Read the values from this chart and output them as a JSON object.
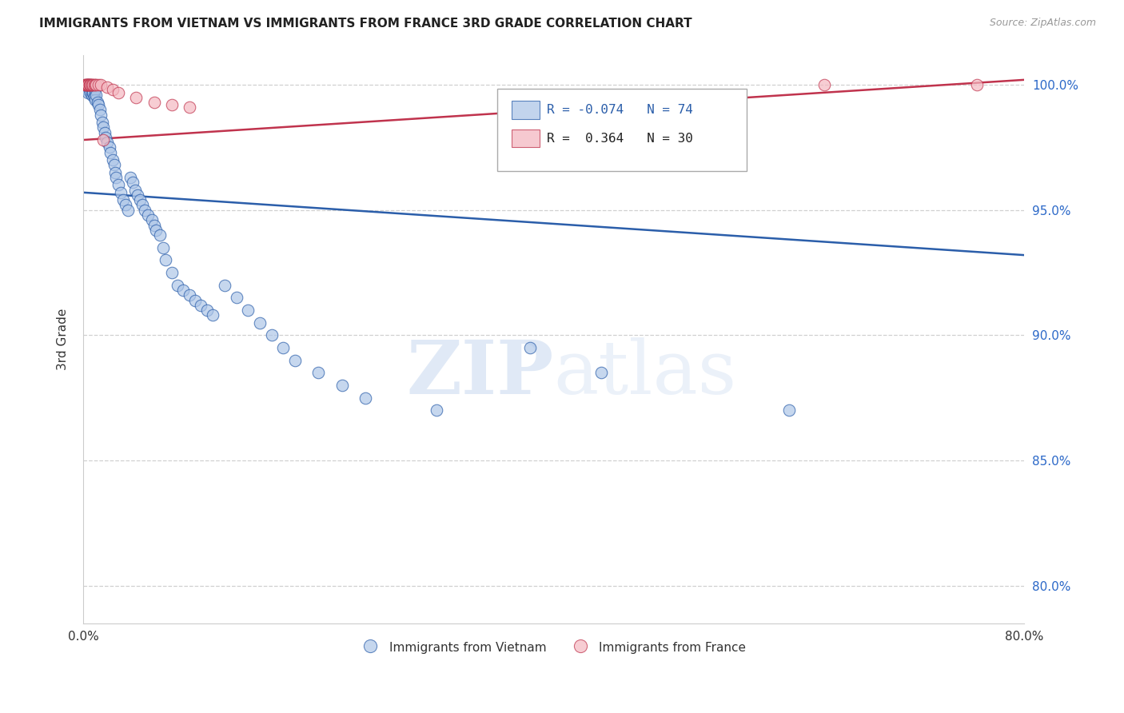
{
  "title": "IMMIGRANTS FROM VIETNAM VS IMMIGRANTS FROM FRANCE 3RD GRADE CORRELATION CHART",
  "source": "Source: ZipAtlas.com",
  "ylabel": "3rd Grade",
  "ylabel_right_ticks": [
    "100.0%",
    "95.0%",
    "90.0%",
    "85.0%",
    "80.0%"
  ],
  "ylabel_right_vals": [
    1.0,
    0.95,
    0.9,
    0.85,
    0.8
  ],
  "xlim": [
    0.0,
    0.8
  ],
  "ylim": [
    0.785,
    1.012
  ],
  "legend_blue_R": "-0.074",
  "legend_blue_N": "74",
  "legend_pink_R": "0.364",
  "legend_pink_N": "30",
  "legend_label_blue": "Immigrants from Vietnam",
  "legend_label_pink": "Immigrants from France",
  "blue_color": "#aec6e8",
  "pink_color": "#f4b8c1",
  "trendline_blue_color": "#2b5eaa",
  "trendline_pink_color": "#c0334d",
  "blue_trend_x0": 0.0,
  "blue_trend_y0": 0.957,
  "blue_trend_x1": 0.8,
  "blue_trend_y1": 0.932,
  "pink_trend_x0": 0.0,
  "pink_trend_y0": 0.978,
  "pink_trend_x1": 0.8,
  "pink_trend_y1": 1.002,
  "blue_x": [
    0.002,
    0.003,
    0.003,
    0.004,
    0.004,
    0.005,
    0.005,
    0.006,
    0.006,
    0.007,
    0.007,
    0.008,
    0.008,
    0.009,
    0.009,
    0.01,
    0.01,
    0.011,
    0.012,
    0.013,
    0.014,
    0.015,
    0.016,
    0.017,
    0.018,
    0.019,
    0.02,
    0.022,
    0.023,
    0.025,
    0.026,
    0.027,
    0.028,
    0.03,
    0.032,
    0.034,
    0.036,
    0.038,
    0.04,
    0.042,
    0.044,
    0.046,
    0.048,
    0.05,
    0.052,
    0.055,
    0.058,
    0.06,
    0.062,
    0.065,
    0.068,
    0.07,
    0.075,
    0.08,
    0.085,
    0.09,
    0.095,
    0.1,
    0.105,
    0.11,
    0.12,
    0.13,
    0.14,
    0.15,
    0.16,
    0.17,
    0.18,
    0.2,
    0.22,
    0.24,
    0.3,
    0.38,
    0.44,
    0.6
  ],
  "blue_y": [
    0.999,
    1.0,
    0.998,
    0.999,
    0.997,
    1.0,
    0.998,
    0.999,
    0.997,
    0.998,
    0.996,
    0.997,
    0.997,
    0.996,
    0.995,
    0.998,
    0.994,
    0.996,
    0.993,
    0.992,
    0.99,
    0.988,
    0.985,
    0.983,
    0.981,
    0.979,
    0.977,
    0.975,
    0.973,
    0.97,
    0.968,
    0.965,
    0.963,
    0.96,
    0.957,
    0.954,
    0.952,
    0.95,
    0.963,
    0.961,
    0.958,
    0.956,
    0.954,
    0.952,
    0.95,
    0.948,
    0.946,
    0.944,
    0.942,
    0.94,
    0.935,
    0.93,
    0.925,
    0.92,
    0.918,
    0.916,
    0.914,
    0.912,
    0.91,
    0.908,
    0.92,
    0.915,
    0.91,
    0.905,
    0.9,
    0.895,
    0.89,
    0.885,
    0.88,
    0.875,
    0.87,
    0.895,
    0.885,
    0.87
  ],
  "pink_x": [
    0.001,
    0.002,
    0.002,
    0.003,
    0.003,
    0.004,
    0.004,
    0.004,
    0.005,
    0.005,
    0.006,
    0.006,
    0.007,
    0.007,
    0.008,
    0.009,
    0.01,
    0.011,
    0.013,
    0.015,
    0.017,
    0.02,
    0.025,
    0.03,
    0.045,
    0.06,
    0.075,
    0.09,
    0.63,
    0.76
  ],
  "pink_y": [
    1.0,
    1.0,
    1.0,
    1.0,
    1.0,
    1.0,
    1.0,
    1.0,
    1.0,
    1.0,
    1.0,
    1.0,
    1.0,
    1.0,
    1.0,
    1.0,
    1.0,
    1.0,
    1.0,
    1.0,
    0.978,
    0.999,
    0.998,
    0.997,
    0.995,
    0.993,
    0.992,
    0.991,
    1.0,
    1.0
  ],
  "watermark_zip": "ZIP",
  "watermark_atlas": "atlas",
  "background_color": "#ffffff",
  "grid_color": "#d0d0d0"
}
